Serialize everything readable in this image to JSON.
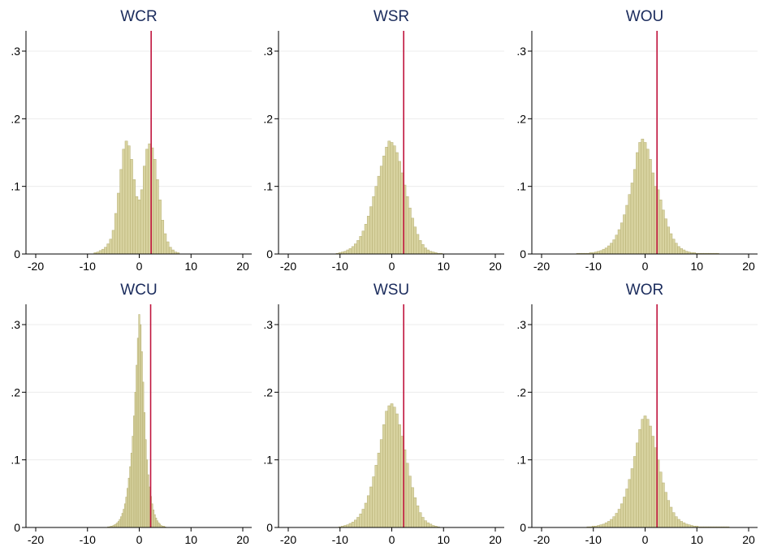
{
  "chart_data": [
    {
      "type": "bar",
      "title": "WCR",
      "xlim": [
        -20,
        20
      ],
      "ylim": [
        0,
        0.33
      ],
      "xticks": [
        "-20",
        "-10",
        "0",
        "10",
        "20"
      ],
      "yticks": [
        "0",
        ".1",
        ".2",
        ".3"
      ],
      "bin_width": 0.5,
      "x": [
        -8.5,
        -8,
        -7.5,
        -7,
        -6.5,
        -6,
        -5.5,
        -5,
        -4.5,
        -4,
        -3.5,
        -3,
        -2.5,
        -2,
        -1.5,
        -1,
        -0.5,
        0,
        0.5,
        1,
        1.5,
        2,
        2.5,
        3,
        3.5,
        4,
        4.5,
        5,
        5.5,
        6,
        6.5,
        7,
        7.5
      ],
      "values": [
        0.002,
        0.003,
        0.005,
        0.007,
        0.01,
        0.015,
        0.022,
        0.035,
        0.06,
        0.09,
        0.125,
        0.155,
        0.167,
        0.16,
        0.14,
        0.11,
        0.085,
        0.08,
        0.095,
        0.13,
        0.155,
        0.163,
        0.157,
        0.14,
        0.11,
        0.08,
        0.05,
        0.03,
        0.018,
        0.01,
        0.006,
        0.003,
        0.002
      ],
      "reference_x": 2.3,
      "bar_color": "#d8d3a0",
      "bar_edge_color": "#b5ae72",
      "line_color": "#c0143c"
    },
    {
      "type": "bar",
      "title": "WSR",
      "xlim": [
        -20,
        20
      ],
      "ylim": [
        0,
        0.33
      ],
      "xticks": [
        "-20",
        "-10",
        "0",
        "10",
        "20"
      ],
      "yticks": [
        "0",
        ".1",
        ".2",
        ".3"
      ],
      "bin_width": 0.5,
      "x": [
        -10.5,
        -10,
        -9.5,
        -9,
        -8.5,
        -8,
        -7.5,
        -7,
        -6.5,
        -6,
        -5.5,
        -5,
        -4.5,
        -4,
        -3.5,
        -3,
        -2.5,
        -2,
        -1.5,
        -1,
        -0.5,
        0,
        0.5,
        1,
        1.5,
        2,
        2.5,
        3,
        3.5,
        4,
        4.5,
        5,
        5.5,
        6,
        6.5,
        7,
        7.5,
        8,
        8.5,
        9,
        9.5
      ],
      "values": [
        0.001,
        0.002,
        0.003,
        0.004,
        0.006,
        0.008,
        0.011,
        0.015,
        0.02,
        0.026,
        0.034,
        0.044,
        0.056,
        0.07,
        0.085,
        0.1,
        0.115,
        0.13,
        0.145,
        0.158,
        0.167,
        0.165,
        0.16,
        0.15,
        0.137,
        0.12,
        0.102,
        0.085,
        0.068,
        0.053,
        0.04,
        0.029,
        0.02,
        0.014,
        0.009,
        0.006,
        0.004,
        0.003,
        0.002,
        0.001,
        0.001
      ],
      "reference_x": 2.3,
      "bar_color": "#d8d3a0",
      "bar_edge_color": "#b5ae72",
      "line_color": "#c0143c"
    },
    {
      "type": "bar",
      "title": "WOU",
      "xlim": [
        -20,
        20
      ],
      "ylim": [
        0,
        0.33
      ],
      "xticks": [
        "-20",
        "-10",
        "0",
        "10",
        "20"
      ],
      "yticks": [
        "0",
        ".1",
        ".2",
        ".3"
      ],
      "bin_width": 0.5,
      "x": [
        -13,
        -12.5,
        -12,
        -11.5,
        -11,
        -10.5,
        -10,
        -9.5,
        -9,
        -8.5,
        -8,
        -7.5,
        -7,
        -6.5,
        -6,
        -5.5,
        -5,
        -4.5,
        -4,
        -3.5,
        -3,
        -2.5,
        -2,
        -1.5,
        -1,
        -0.5,
        0,
        0.5,
        1,
        1.5,
        2,
        2.5,
        3,
        3.5,
        4,
        4.5,
        5,
        5.5,
        6,
        6.5,
        7,
        7.5,
        8,
        8.5,
        9,
        9.5,
        10,
        10.5,
        11,
        11.5,
        12,
        12.5,
        13,
        13.5,
        14
      ],
      "values": [
        0.001,
        0.001,
        0.001,
        0.001,
        0.001,
        0.002,
        0.002,
        0.003,
        0.004,
        0.005,
        0.007,
        0.009,
        0.012,
        0.016,
        0.021,
        0.028,
        0.036,
        0.046,
        0.058,
        0.072,
        0.088,
        0.105,
        0.125,
        0.15,
        0.165,
        0.17,
        0.165,
        0.155,
        0.14,
        0.12,
        0.1,
        0.095,
        0.08,
        0.065,
        0.052,
        0.04,
        0.03,
        0.022,
        0.016,
        0.011,
        0.008,
        0.006,
        0.004,
        0.003,
        0.002,
        0.002,
        0.001,
        0.001,
        0.001,
        0.001,
        0.001,
        0.001,
        0.001,
        0.001,
        0.001
      ],
      "reference_x": 2.3,
      "bar_color": "#d8d3a0",
      "bar_edge_color": "#b5ae72",
      "line_color": "#c0143c"
    },
    {
      "type": "bar",
      "title": "WCU",
      "xlim": [
        -20,
        20
      ],
      "ylim": [
        0,
        0.33
      ],
      "xticks": [
        "-20",
        "-10",
        "0",
        "10",
        "20"
      ],
      "yticks": [
        "0",
        ".1",
        ".2",
        ".3"
      ],
      "bin_width": 0.25,
      "x": [
        -6,
        -5.75,
        -5.5,
        -5.25,
        -5,
        -4.75,
        -4.5,
        -4.25,
        -4,
        -3.75,
        -3.5,
        -3.25,
        -3,
        -2.75,
        -2.5,
        -2.25,
        -2,
        -1.75,
        -1.5,
        -1.25,
        -1,
        -0.75,
        -0.5,
        -0.25,
        0,
        0.25,
        0.5,
        0.75,
        1,
        1.25,
        1.5,
        1.75,
        2,
        2.25,
        2.5,
        2.75,
        3,
        3.25,
        3.5,
        3.75,
        4,
        4.25,
        4.5,
        4.75,
        5
      ],
      "values": [
        0.001,
        0.001,
        0.002,
        0.002,
        0.003,
        0.004,
        0.005,
        0.007,
        0.009,
        0.012,
        0.016,
        0.021,
        0.027,
        0.035,
        0.045,
        0.058,
        0.073,
        0.09,
        0.11,
        0.135,
        0.165,
        0.2,
        0.24,
        0.28,
        0.315,
        0.3,
        0.26,
        0.215,
        0.17,
        0.13,
        0.1,
        0.078,
        0.06,
        0.046,
        0.035,
        0.026,
        0.019,
        0.014,
        0.01,
        0.007,
        0.005,
        0.003,
        0.002,
        0.002,
        0.001
      ],
      "reference_x": 2.2,
      "bar_color": "#d8d3a0",
      "bar_edge_color": "#b5ae72",
      "line_color": "#c0143c"
    },
    {
      "type": "bar",
      "title": "WSU",
      "xlim": [
        -20,
        20
      ],
      "ylim": [
        0,
        0.33
      ],
      "xticks": [
        "-20",
        "-10",
        "0",
        "10",
        "20"
      ],
      "yticks": [
        "0",
        ".1",
        ".2",
        ".3"
      ],
      "bin_width": 0.5,
      "x": [
        -10,
        -9.5,
        -9,
        -8.5,
        -8,
        -7.5,
        -7,
        -6.5,
        -6,
        -5.5,
        -5,
        -4.5,
        -4,
        -3.5,
        -3,
        -2.5,
        -2,
        -1.5,
        -1,
        -0.5,
        0,
        0.5,
        1,
        1.5,
        2,
        2.5,
        3,
        3.5,
        4,
        4.5,
        5,
        5.5,
        6,
        6.5,
        7,
        7.5,
        8,
        8.5,
        9
      ],
      "values": [
        0.001,
        0.002,
        0.003,
        0.004,
        0.006,
        0.008,
        0.011,
        0.015,
        0.02,
        0.027,
        0.036,
        0.047,
        0.06,
        0.075,
        0.092,
        0.11,
        0.13,
        0.152,
        0.172,
        0.18,
        0.183,
        0.178,
        0.168,
        0.152,
        0.135,
        0.115,
        0.095,
        0.076,
        0.059,
        0.044,
        0.032,
        0.022,
        0.015,
        0.01,
        0.007,
        0.005,
        0.003,
        0.002,
        0.001
      ],
      "reference_x": 2.3,
      "bar_color": "#d8d3a0",
      "bar_edge_color": "#b5ae72",
      "line_color": "#c0143c"
    },
    {
      "type": "bar",
      "title": "WOR",
      "xlim": [
        -20,
        20
      ],
      "ylim": [
        0,
        0.33
      ],
      "xticks": [
        "-20",
        "-10",
        "0",
        "10",
        "20"
      ],
      "yticks": [
        "0",
        ".1",
        ".2",
        ".3"
      ],
      "bin_width": 0.5,
      "x": [
        -11,
        -10.5,
        -10,
        -9.5,
        -9,
        -8.5,
        -8,
        -7.5,
        -7,
        -6.5,
        -6,
        -5.5,
        -5,
        -4.5,
        -4,
        -3.5,
        -3,
        -2.5,
        -2,
        -1.5,
        -1,
        -0.5,
        0,
        0.5,
        1,
        1.5,
        2,
        2.5,
        3,
        3.5,
        4,
        4.5,
        5,
        5.5,
        6,
        6.5,
        7,
        7.5,
        8,
        8.5,
        9,
        9.5,
        10,
        10.5,
        11,
        11.5,
        12,
        12.5,
        13,
        13.5,
        14,
        14.5,
        15,
        15.5,
        16
      ],
      "values": [
        0.001,
        0.001,
        0.002,
        0.002,
        0.003,
        0.004,
        0.005,
        0.007,
        0.009,
        0.012,
        0.016,
        0.021,
        0.027,
        0.035,
        0.045,
        0.057,
        0.071,
        0.087,
        0.105,
        0.125,
        0.145,
        0.16,
        0.165,
        0.16,
        0.15,
        0.135,
        0.118,
        0.1,
        0.082,
        0.066,
        0.052,
        0.04,
        0.03,
        0.022,
        0.016,
        0.012,
        0.009,
        0.007,
        0.005,
        0.004,
        0.003,
        0.002,
        0.002,
        0.001,
        0.001,
        0.001,
        0.001,
        0.001,
        0.001,
        0.001,
        0.001,
        0.001,
        0.001,
        0.001,
        0.001
      ],
      "reference_x": 2.3,
      "bar_color": "#d8d3a0",
      "bar_edge_color": "#b5ae72",
      "line_color": "#c0143c"
    }
  ]
}
